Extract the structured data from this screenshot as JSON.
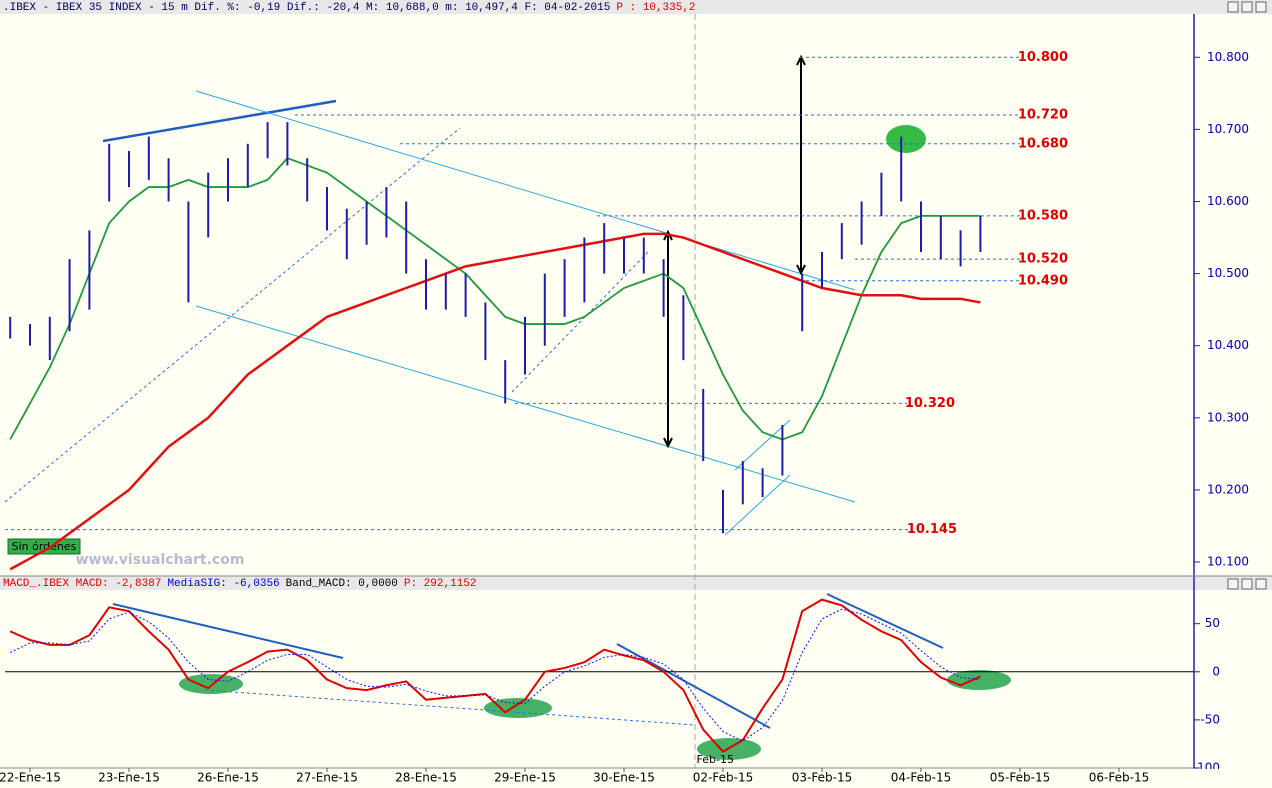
{
  "chart_data": [
    {
      "type": "ohlc",
      "title": ".IBEX - IBEX 35 INDEX - 15 m Dif. %: -0,19 Dif.: -20,4 M: 10,688,0 m: 10,497,4 F: 04-02-2015",
      "subtitle": "P : 10,335,2",
      "x": [
        -0.2,
        0,
        0.2,
        0.4,
        0.6,
        0.8,
        1.0,
        1.2,
        1.4,
        1.6,
        1.8,
        2.0,
        2.2,
        2.4,
        2.6,
        2.8,
        3.0,
        3.2,
        3.4,
        3.6,
        3.8,
        4.0,
        4.2,
        4.4,
        4.6,
        4.8,
        5.0,
        5.2,
        5.4,
        5.6,
        5.8,
        6.0,
        6.2,
        6.4,
        6.6,
        6.8,
        7.0,
        7.2,
        7.4,
        7.6,
        7.8,
        8.0,
        8.2,
        8.4,
        8.6,
        8.8,
        9.0,
        9.2,
        9.4,
        9.6
      ],
      "high": [
        10.44,
        10.43,
        10.44,
        10.52,
        10.56,
        10.68,
        10.67,
        10.69,
        10.66,
        10.6,
        10.64,
        10.66,
        10.68,
        10.71,
        10.71,
        10.66,
        10.62,
        10.59,
        10.6,
        10.62,
        10.6,
        10.52,
        10.5,
        10.5,
        10.46,
        10.38,
        10.44,
        10.5,
        10.52,
        10.55,
        10.57,
        10.55,
        10.55,
        10.52,
        10.47,
        10.34,
        10.2,
        10.24,
        10.23,
        10.29,
        10.5,
        10.53,
        10.57,
        10.6,
        10.64,
        10.69,
        10.6,
        10.58,
        10.56,
        10.58
      ],
      "low": [
        10.41,
        10.4,
        10.38,
        10.42,
        10.45,
        10.6,
        10.62,
        10.63,
        10.6,
        10.46,
        10.55,
        10.6,
        10.62,
        10.66,
        10.65,
        10.6,
        10.56,
        10.52,
        10.54,
        10.55,
        10.5,
        10.45,
        10.45,
        10.44,
        10.38,
        10.32,
        10.36,
        10.4,
        10.44,
        10.46,
        10.5,
        10.5,
        10.5,
        10.44,
        10.38,
        10.24,
        10.14,
        10.18,
        10.19,
        10.22,
        10.42,
        10.48,
        10.52,
        10.54,
        10.58,
        10.6,
        10.53,
        10.52,
        10.51,
        10.53
      ],
      "bar_color": "#1c1ca8",
      "series": [
        {
          "color": "#1f9a3a",
          "values": [
            10.27,
            10.32,
            10.37,
            10.43,
            10.5,
            10.57,
            10.6,
            10.62,
            10.62,
            10.63,
            10.62,
            10.62,
            10.62,
            10.63,
            10.66,
            10.65,
            10.64,
            10.62,
            10.6,
            10.58,
            10.56,
            10.54,
            10.52,
            10.5,
            10.47,
            10.44,
            10.43,
            10.43,
            10.43,
            10.44,
            10.46,
            10.48,
            10.49,
            10.5,
            10.48,
            10.42,
            10.36,
            10.31,
            10.28,
            10.27,
            10.28,
            10.33,
            10.4,
            10.47,
            10.53,
            10.57,
            10.58,
            10.58,
            10.58,
            10.58
          ]
        },
        {
          "color": "#e01010",
          "values": [
            10.09,
            10.105,
            10.12,
            10.14,
            10.16,
            10.18,
            10.2,
            10.23,
            10.26,
            10.28,
            10.3,
            10.33,
            10.36,
            10.38,
            10.4,
            10.42,
            10.44,
            10.45,
            10.46,
            10.47,
            10.48,
            10.49,
            10.5,
            10.51,
            10.515,
            10.52,
            10.525,
            10.53,
            10.535,
            10.54,
            10.545,
            10.55,
            10.555,
            10.555,
            10.55,
            10.54,
            10.53,
            10.52,
            10.51,
            10.5,
            10.49,
            10.48,
            10.475,
            10.47,
            10.47,
            10.47,
            10.465,
            10.465,
            10.465,
            10.46
          ]
        }
      ],
      "ylim": [
        10.082,
        10.86
      ],
      "yticks": [
        {
          "value": 10.1,
          "label": "10.100"
        },
        {
          "value": 10.2,
          "label": "10.200"
        },
        {
          "value": 10.3,
          "label": "10.300"
        },
        {
          "value": 10.4,
          "label": "10.400"
        },
        {
          "value": 10.5,
          "label": "10.500"
        },
        {
          "value": 10.6,
          "label": "10.600"
        },
        {
          "value": 10.7,
          "label": "10.700"
        },
        {
          "value": 10.8,
          "label": "10.800"
        }
      ],
      "levels": [
        {
          "value": 10.8,
          "label": "10.800"
        },
        {
          "value": 10.72,
          "label": "10.720"
        },
        {
          "value": 10.68,
          "label": "10.680"
        },
        {
          "value": 10.58,
          "label": "10.580"
        },
        {
          "value": 10.52,
          "label": "10.520"
        },
        {
          "value": 10.49,
          "label": "10.490"
        },
        {
          "value": 10.32,
          "label": "10.320"
        },
        {
          "value": 10.145,
          "label": "10.145"
        }
      ],
      "level_color": "#e00000",
      "marker": {
        "x": 6.72,
        "label": "Feb-15"
      },
      "button": "Sin órdenes",
      "watermark": "www.visualchart.com"
    },
    {
      "type": "line",
      "title": "MACD_.IBEX MACD: -2,8387",
      "signal_label": "MediaSIG: -6,0356",
      "band_label": "Band_MACD: 0,0000",
      "price_label": "P: 292,1152",
      "x": [
        -0.2,
        0,
        0.2,
        0.4,
        0.6,
        0.8,
        1.0,
        1.2,
        1.4,
        1.6,
        1.8,
        2.0,
        2.2,
        2.4,
        2.6,
        2.8,
        3.0,
        3.2,
        3.4,
        3.6,
        3.8,
        4.0,
        4.2,
        4.4,
        4.6,
        4.8,
        5.0,
        5.2,
        5.4,
        5.6,
        5.8,
        6.0,
        6.2,
        6.4,
        6.6,
        6.8,
        7.0,
        7.2,
        7.4,
        7.6,
        7.8,
        8.0,
        8.2,
        8.4,
        8.6,
        8.8,
        9.0,
        9.2,
        9.4,
        9.6
      ],
      "series": [
        {
          "color": "#e00000",
          "style": "solid",
          "values": [
            42,
            33,
            28,
            28,
            38,
            67,
            63,
            42,
            23,
            -8,
            -17,
            0,
            10,
            21,
            23,
            12,
            -8,
            -17,
            -19,
            -14,
            -10,
            -29,
            -27,
            -25,
            -23,
            -42,
            -29,
            0,
            4,
            10,
            23,
            17,
            12,
            0,
            -19,
            -60,
            -83,
            -71,
            -38,
            -8,
            63,
            75,
            69,
            54,
            42,
            33,
            10,
            -6,
            -14,
            -5
          ]
        },
        {
          "color": "#1010ff",
          "style": "dotted",
          "values": [
            20,
            30,
            30,
            28,
            32,
            55,
            62,
            52,
            35,
            10,
            -8,
            -10,
            0,
            12,
            18,
            18,
            5,
            -8,
            -15,
            -16,
            -13,
            -20,
            -25,
            -25,
            -24,
            -32,
            -33,
            -15,
            0,
            6,
            15,
            18,
            15,
            8,
            -8,
            -38,
            -62,
            -72,
            -58,
            -30,
            20,
            55,
            65,
            60,
            50,
            40,
            22,
            5,
            -6,
            -8
          ]
        }
      ],
      "ylim": [
        -100,
        85
      ],
      "yticks": [
        50,
        0,
        -50,
        -100
      ],
      "zero_line": true,
      "xlim": [
        -0.25,
        11.72
      ],
      "xticks": [
        {
          "value": 0,
          "label": "22-Ene-15"
        },
        {
          "value": 1,
          "label": "23-Ene-15"
        },
        {
          "value": 2,
          "label": "26-Ene-15"
        },
        {
          "value": 3,
          "label": "27-Ene-15"
        },
        {
          "value": 4,
          "label": "28-Ene-15"
        },
        {
          "value": 5,
          "label": "29-Ene-15"
        },
        {
          "value": 6,
          "label": "30-Ene-15"
        },
        {
          "value": 7,
          "label": "02-Feb-15"
        },
        {
          "value": 8,
          "label": "03-Feb-15"
        },
        {
          "value": 9,
          "label": "04-Feb-15"
        },
        {
          "value": 10,
          "label": "05-Feb-15"
        },
        {
          "value": 11,
          "label": "06-Feb-15"
        }
      ]
    }
  ]
}
